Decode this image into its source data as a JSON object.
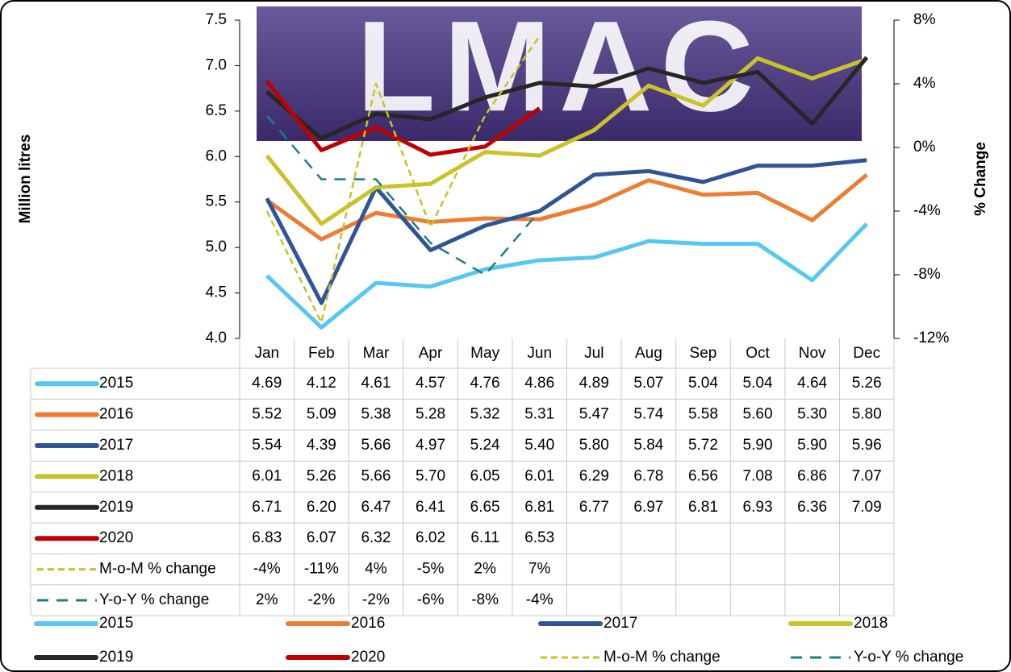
{
  "chart_data": {
    "type": "line",
    "logo": "LMAC",
    "y_label": "Million litres",
    "y2_label": "% Change",
    "categories": [
      "Jan",
      "Feb",
      "Mar",
      "Apr",
      "May",
      "Jun",
      "Jul",
      "Aug",
      "Sep",
      "Oct",
      "Nov",
      "Dec"
    ],
    "ylim": [
      4.0,
      7.5
    ],
    "yticks": [
      {
        "value": 4,
        "label": "4.0"
      },
      4.5,
      {
        "value": 5,
        "label": "5.0"
      },
      5.5,
      {
        "value": 6,
        "label": "6.0"
      },
      6.5,
      {
        "value": 7,
        "label": "7.0"
      },
      7.5
    ],
    "y2lim": [
      -12,
      8
    ],
    "y2ticks": [
      {
        "value": -12,
        "label": "-12%"
      },
      {
        "value": -8,
        "label": "-8%"
      },
      {
        "value": -4,
        "label": "-4%"
      },
      {
        "value": 0,
        "label": "0%"
      },
      {
        "value": 4,
        "label": "4%"
      },
      {
        "value": 8,
        "label": "8%"
      }
    ],
    "data_table": true,
    "series": [
      {
        "name": "2015",
        "color": "#55c8f2",
        "line_style": "solid",
        "values": [
          4.69,
          4.12,
          4.61,
          4.57,
          4.76,
          4.86,
          4.89,
          5.07,
          5.04,
          5.04,
          4.64,
          5.26
        ],
        "value_labels": [
          "4.69",
          "4.12",
          "4.61",
          "4.57",
          "4.76",
          "4.86",
          "4.89",
          "5.07",
          "5.04",
          "5.04",
          "4.64",
          "5.26"
        ]
      },
      {
        "name": "2016",
        "color": "#ed7d31",
        "line_style": "solid",
        "values": [
          5.52,
          5.09,
          5.38,
          5.28,
          5.32,
          5.31,
          5.47,
          5.74,
          5.58,
          5.6,
          5.3,
          5.8
        ],
        "value_labels": [
          "5.52",
          "5.09",
          "5.38",
          "5.28",
          "5.32",
          "5.31",
          "5.47",
          "5.74",
          "5.58",
          "5.60",
          "5.30",
          "5.80"
        ]
      },
      {
        "name": "2017",
        "color": "#2f5597",
        "line_style": "solid",
        "values": [
          5.54,
          4.39,
          5.66,
          4.97,
          5.24,
          5.4,
          5.8,
          5.84,
          5.72,
          5.9,
          5.9,
          5.96
        ],
        "value_labels": [
          "5.54",
          "4.39",
          "5.66",
          "4.97",
          "5.24",
          "5.40",
          "5.80",
          "5.84",
          "5.72",
          "5.90",
          "5.90",
          "5.96"
        ]
      },
      {
        "name": "2018",
        "color": "#c9c228",
        "line_style": "solid",
        "values": [
          6.01,
          5.26,
          5.66,
          5.7,
          6.05,
          6.01,
          6.29,
          6.78,
          6.56,
          7.08,
          6.86,
          7.07
        ],
        "value_labels": [
          "6.01",
          "5.26",
          "5.66",
          "5.70",
          "6.05",
          "6.01",
          "6.29",
          "6.78",
          "6.56",
          "7.08",
          "6.86",
          "7.07"
        ]
      },
      {
        "name": "2019",
        "color": "#262626",
        "line_style": "solid",
        "values": [
          6.71,
          6.2,
          6.47,
          6.41,
          6.65,
          6.81,
          6.77,
          6.97,
          6.81,
          6.93,
          6.36,
          7.09
        ],
        "value_labels": [
          "6.71",
          "6.20",
          "6.47",
          "6.41",
          "6.65",
          "6.81",
          "6.77",
          "6.97",
          "6.81",
          "6.93",
          "6.36",
          "7.09"
        ]
      },
      {
        "name": "2020",
        "color": "#c00000",
        "line_style": "solid",
        "values": [
          6.83,
          6.07,
          6.32,
          6.02,
          6.11,
          6.53,
          null,
          null,
          null,
          null,
          null,
          null
        ],
        "value_labels": [
          "6.83",
          "6.07",
          "6.32",
          "6.02",
          "6.11",
          "6.53",
          null,
          null,
          null,
          null,
          null,
          null
        ]
      },
      {
        "name": "M-o-M % change",
        "color": "#c9c228",
        "line_style": "dotted",
        "axis": "y2",
        "values": [
          -4,
          -11,
          4,
          -5,
          2,
          7,
          null,
          null,
          null,
          null,
          null,
          null
        ],
        "value_labels": [
          "-4%",
          "-11%",
          "4%",
          "-5%",
          "2%",
          "7%",
          null,
          null,
          null,
          null,
          null,
          null
        ]
      },
      {
        "name": "Y-o-Y % change",
        "color": "#1a8080",
        "line_style": "dashed",
        "axis": "y2",
        "values": [
          2,
          -2,
          -2,
          -6,
          -8,
          -4,
          null,
          null,
          null,
          null,
          null,
          null
        ],
        "value_labels": [
          "2%",
          "-2%",
          "-2%",
          "-6%",
          "-8%",
          "-4%",
          null,
          null,
          null,
          null,
          null,
          null
        ]
      }
    ]
  }
}
